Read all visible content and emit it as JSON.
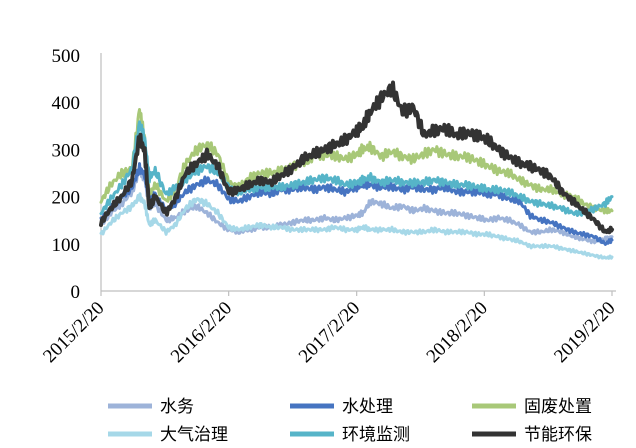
{
  "chart_data": {
    "type": "line",
    "title": "",
    "xlabel": "",
    "ylabel": "",
    "ylim": [
      0,
      500
    ],
    "yticks": [
      "0",
      "100",
      "200",
      "300",
      "400",
      "500"
    ],
    "xticks": [
      "2015/2/20",
      "2016/2/20",
      "2017/2/20",
      "2018/2/20",
      "2019/2/20"
    ],
    "grid": false,
    "legend_position": "bottom",
    "x": [
      "2015-02-20",
      "2015-03-20",
      "2015-04-20",
      "2015-05-20",
      "2015-06-10",
      "2015-06-25",
      "2015-07-08",
      "2015-07-25",
      "2015-08-25",
      "2015-09-20",
      "2015-10-20",
      "2015-11-20",
      "2015-12-20",
      "2016-01-20",
      "2016-02-20",
      "2016-03-20",
      "2016-04-20",
      "2016-05-20",
      "2016-06-20",
      "2016-07-20",
      "2016-08-20",
      "2016-09-20",
      "2016-10-20",
      "2016-11-20",
      "2016-12-20",
      "2017-01-20",
      "2017-02-20",
      "2017-03-10",
      "2017-04-01",
      "2017-05-01",
      "2017-06-01",
      "2017-07-01",
      "2017-08-01",
      "2017-09-01",
      "2017-10-01",
      "2017-11-01",
      "2017-12-01",
      "2018-01-01",
      "2018-02-01",
      "2018-03-01",
      "2018-04-01",
      "2018-05-01",
      "2018-06-01",
      "2018-07-01",
      "2018-08-01",
      "2018-09-01",
      "2018-10-01",
      "2018-11-01",
      "2018-12-01",
      "2019-01-01",
      "2019-02-01",
      "2019-02-20"
    ],
    "series": [
      {
        "name": "水务",
        "color": "#9db3d9",
        "values": [
          140,
          165,
          185,
          210,
          255,
          240,
          175,
          185,
          150,
          155,
          170,
          180,
          165,
          145,
          130,
          125,
          130,
          135,
          135,
          140,
          145,
          150,
          150,
          155,
          150,
          155,
          160,
          165,
          190,
          185,
          175,
          180,
          170,
          175,
          170,
          165,
          165,
          160,
          155,
          150,
          155,
          150,
          140,
          125,
          125,
          130,
          125,
          115,
          110,
          105,
          110,
          115
        ]
      },
      {
        "name": "水处理",
        "color": "#4674c1",
        "values": [
          150,
          175,
          200,
          220,
          260,
          245,
          195,
          205,
          170,
          185,
          210,
          225,
          235,
          225,
          195,
          190,
          200,
          210,
          205,
          215,
          215,
          220,
          215,
          220,
          215,
          210,
          220,
          225,
          225,
          220,
          220,
          215,
          220,
          215,
          215,
          220,
          210,
          210,
          210,
          205,
          205,
          195,
          190,
          160,
          150,
          145,
          135,
          125,
          120,
          115,
          100,
          108
        ]
      },
      {
        "name": "固废处置",
        "color": "#a8c878",
        "values": [
          190,
          225,
          250,
          260,
          385,
          320,
          205,
          225,
          190,
          215,
          270,
          300,
          310,
          290,
          230,
          220,
          240,
          250,
          250,
          255,
          265,
          270,
          285,
          290,
          285,
          280,
          290,
          300,
          305,
          285,
          295,
          285,
          280,
          290,
          300,
          290,
          285,
          285,
          275,
          265,
          255,
          250,
          235,
          225,
          215,
          215,
          205,
          200,
          185,
          175,
          170,
          170
        ]
      },
      {
        "name": "大气治理",
        "color": "#a6d8e8",
        "values": [
          120,
          145,
          165,
          180,
          200,
          185,
          140,
          150,
          125,
          140,
          175,
          195,
          185,
          165,
          135,
          130,
          135,
          140,
          135,
          135,
          130,
          130,
          130,
          130,
          135,
          130,
          130,
          135,
          130,
          130,
          130,
          125,
          125,
          125,
          130,
          125,
          125,
          125,
          120,
          120,
          115,
          110,
          105,
          95,
          95,
          95,
          90,
          85,
          80,
          75,
          70,
          72
        ]
      },
      {
        "name": "环境监测",
        "color": "#56b4c8",
        "values": [
          165,
          195,
          225,
          260,
          355,
          320,
          240,
          255,
          205,
          220,
          235,
          255,
          265,
          250,
          220,
          210,
          215,
          220,
          220,
          220,
          225,
          230,
          235,
          240,
          235,
          225,
          230,
          235,
          240,
          230,
          235,
          230,
          230,
          230,
          235,
          230,
          225,
          225,
          220,
          215,
          215,
          210,
          200,
          190,
          185,
          180,
          175,
          165,
          165,
          175,
          185,
          200
        ]
      },
      {
        "name": "节能环保",
        "color": "#333333",
        "values": [
          145,
          175,
          200,
          235,
          325,
          295,
          175,
          200,
          165,
          195,
          250,
          270,
          290,
          265,
          210,
          215,
          225,
          235,
          230,
          245,
          260,
          280,
          290,
          300,
          310,
          320,
          340,
          350,
          380,
          410,
          430,
          380,
          390,
          330,
          340,
          345,
          330,
          335,
          330,
          320,
          300,
          285,
          270,
          265,
          255,
          240,
          210,
          190,
          170,
          150,
          125,
          130
        ]
      }
    ]
  }
}
